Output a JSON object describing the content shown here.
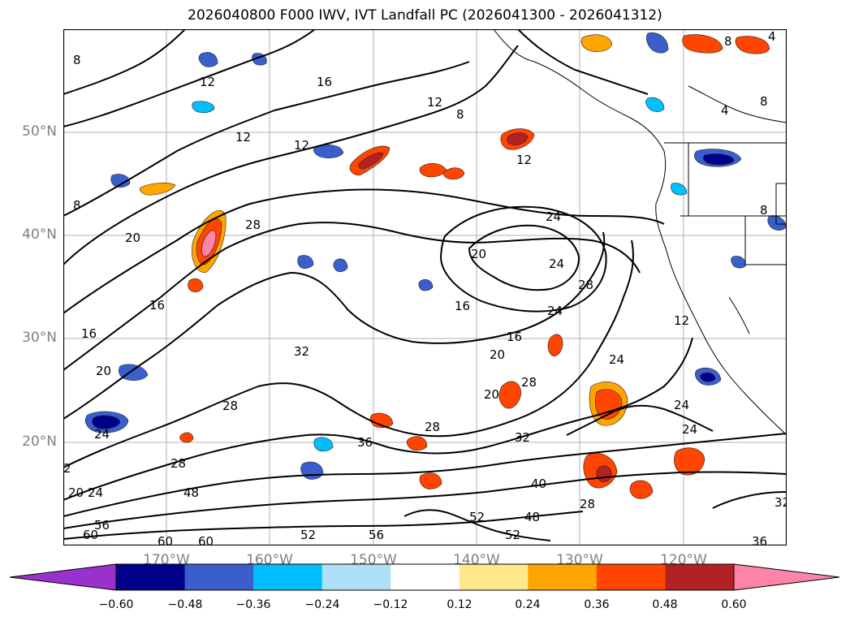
{
  "title": "2026040800 F000 IWV, IVT Landfall PC (2026041300 - 2026041312)",
  "lat_labels": [
    "50°N",
    "40°N",
    "30°N",
    "20°N"
  ],
  "lon_labels": [
    "170°W",
    "160°W",
    "150°W",
    "140°W",
    "130°W",
    "120°W"
  ],
  "colorbar": {
    "ticks": [
      "−0.60",
      "−0.48",
      "−0.36",
      "−0.24",
      "−0.12",
      "0.12",
      "0.24",
      "0.36",
      "0.48",
      "0.60"
    ],
    "colors": [
      "#9932cc",
      "#00008b",
      "#3a5fcd",
      "#00bfff",
      "#b0e0f8",
      "#ffffff",
      "#ffe88c",
      "#ffa500",
      "#ff4500",
      "#b22222",
      "#ff85a8"
    ]
  },
  "contour_labels": [
    "8",
    "12",
    "16",
    "20",
    "24",
    "28",
    "32",
    "36",
    "40",
    "48",
    "52",
    "56",
    "60",
    "4",
    "2"
  ]
}
